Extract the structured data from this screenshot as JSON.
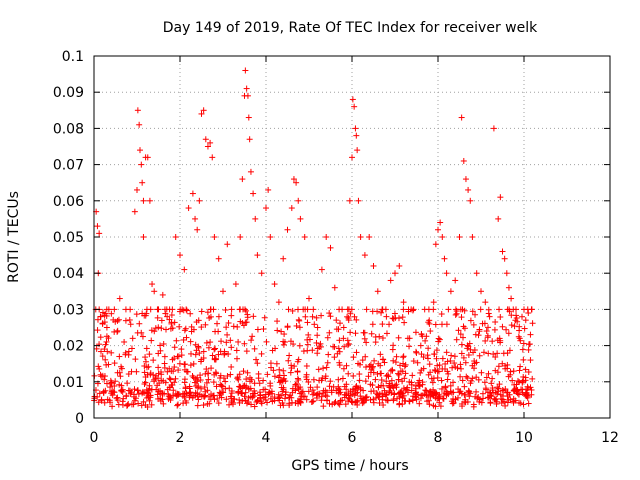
{
  "chart_data": {
    "type": "scatter",
    "title": "Day 149 of 2019, Rate Of TEC Index for receiver welk",
    "xlabel": "GPS time / hours",
    "ylabel": "ROTI / TECUs",
    "xlim": [
      0,
      12
    ],
    "ylim": [
      0,
      0.1
    ],
    "xticks": [
      0,
      2,
      4,
      6,
      8,
      10,
      12
    ],
    "xtick_labels": [
      "0",
      "2",
      "4",
      "6",
      "8",
      "10",
      "12"
    ],
    "yticks": [
      0,
      0.01,
      0.02,
      0.03,
      0.04,
      0.05,
      0.06,
      0.07,
      0.08,
      0.09,
      0.1
    ],
    "ytick_labels": [
      "0",
      "0.01",
      "0.02",
      "0.03",
      "0.04",
      "0.05",
      "0.06",
      "0.07",
      "0.08",
      "0.09",
      "0.1"
    ],
    "grid": true,
    "marker": "+",
    "marker_color": "#ff0000",
    "x_data_range": [
      0,
      10.2
    ],
    "series": [
      {
        "name": "ROTI",
        "color": "#ff0000",
        "points": [
          [
            0.05,
            0.057
          ],
          [
            0.08,
            0.053
          ],
          [
            0.12,
            0.051
          ],
          [
            0.1,
            0.04
          ],
          [
            0.15,
            0.028
          ],
          [
            0.2,
            0.026
          ],
          [
            0.3,
            0.025
          ],
          [
            0.4,
            0.018
          ],
          [
            0.6,
            0.033
          ],
          [
            0.7,
            0.021
          ],
          [
            0.9,
            0.022
          ],
          [
            0.95,
            0.057
          ],
          [
            1.0,
            0.063
          ],
          [
            1.02,
            0.085
          ],
          [
            1.05,
            0.081
          ],
          [
            1.07,
            0.074
          ],
          [
            1.1,
            0.07
          ],
          [
            1.12,
            0.065
          ],
          [
            1.15,
            0.06
          ],
          [
            1.2,
            0.072
          ],
          [
            1.25,
            0.072
          ],
          [
            1.3,
            0.06
          ],
          [
            1.15,
            0.05
          ],
          [
            1.35,
            0.037
          ],
          [
            1.4,
            0.035
          ],
          [
            1.5,
            0.03
          ],
          [
            1.6,
            0.034
          ],
          [
            1.7,
            0.028
          ],
          [
            1.8,
            0.026
          ],
          [
            1.9,
            0.05
          ],
          [
            2.0,
            0.045
          ],
          [
            2.1,
            0.041
          ],
          [
            2.2,
            0.058
          ],
          [
            2.3,
            0.062
          ],
          [
            2.35,
            0.055
          ],
          [
            2.4,
            0.052
          ],
          [
            2.45,
            0.06
          ],
          [
            2.5,
            0.084
          ],
          [
            2.55,
            0.085
          ],
          [
            2.6,
            0.077
          ],
          [
            2.65,
            0.075
          ],
          [
            2.7,
            0.076
          ],
          [
            2.75,
            0.072
          ],
          [
            2.8,
            0.05
          ],
          [
            2.9,
            0.044
          ],
          [
            3.0,
            0.035
          ],
          [
            3.1,
            0.048
          ],
          [
            3.2,
            0.03
          ],
          [
            3.3,
            0.037
          ],
          [
            3.4,
            0.05
          ],
          [
            3.45,
            0.066
          ],
          [
            3.5,
            0.089
          ],
          [
            3.52,
            0.096
          ],
          [
            3.55,
            0.091
          ],
          [
            3.58,
            0.089
          ],
          [
            3.6,
            0.083
          ],
          [
            3.62,
            0.077
          ],
          [
            3.65,
            0.068
          ],
          [
            3.7,
            0.062
          ],
          [
            3.75,
            0.055
          ],
          [
            3.8,
            0.045
          ],
          [
            3.9,
            0.04
          ],
          [
            4.0,
            0.058
          ],
          [
            4.05,
            0.063
          ],
          [
            4.1,
            0.05
          ],
          [
            4.2,
            0.037
          ],
          [
            4.3,
            0.032
          ],
          [
            4.4,
            0.044
          ],
          [
            4.5,
            0.052
          ],
          [
            4.6,
            0.058
          ],
          [
            4.65,
            0.066
          ],
          [
            4.7,
            0.065
          ],
          [
            4.75,
            0.06
          ],
          [
            4.8,
            0.055
          ],
          [
            4.9,
            0.05
          ],
          [
            5.0,
            0.033
          ],
          [
            5.1,
            0.03
          ],
          [
            5.2,
            0.025
          ],
          [
            5.3,
            0.041
          ],
          [
            5.4,
            0.05
          ],
          [
            5.5,
            0.047
          ],
          [
            5.6,
            0.036
          ],
          [
            5.7,
            0.03
          ],
          [
            5.8,
            0.022
          ],
          [
            5.9,
            0.03
          ],
          [
            5.95,
            0.06
          ],
          [
            6.0,
            0.072
          ],
          [
            6.02,
            0.088
          ],
          [
            6.05,
            0.086
          ],
          [
            6.08,
            0.08
          ],
          [
            6.1,
            0.078
          ],
          [
            6.12,
            0.074
          ],
          [
            6.15,
            0.06
          ],
          [
            6.2,
            0.05
          ],
          [
            6.3,
            0.045
          ],
          [
            6.4,
            0.05
          ],
          [
            6.5,
            0.042
          ],
          [
            6.6,
            0.035
          ],
          [
            6.7,
            0.03
          ],
          [
            6.8,
            0.028
          ],
          [
            6.9,
            0.038
          ],
          [
            7.0,
            0.04
          ],
          [
            7.1,
            0.042
          ],
          [
            7.2,
            0.032
          ],
          [
            7.3,
            0.022
          ],
          [
            7.5,
            0.018
          ],
          [
            7.6,
            0.02
          ],
          [
            7.8,
            0.026
          ],
          [
            7.9,
            0.032
          ],
          [
            7.95,
            0.048
          ],
          [
            8.0,
            0.052
          ],
          [
            8.05,
            0.054
          ],
          [
            8.1,
            0.05
          ],
          [
            8.15,
            0.044
          ],
          [
            8.2,
            0.04
          ],
          [
            8.3,
            0.035
          ],
          [
            8.4,
            0.038
          ],
          [
            8.5,
            0.05
          ],
          [
            8.55,
            0.083
          ],
          [
            8.6,
            0.071
          ],
          [
            8.65,
            0.066
          ],
          [
            8.7,
            0.063
          ],
          [
            8.75,
            0.06
          ],
          [
            8.8,
            0.05
          ],
          [
            8.9,
            0.04
          ],
          [
            9.0,
            0.035
          ],
          [
            9.1,
            0.032
          ],
          [
            9.2,
            0.028
          ],
          [
            9.3,
            0.08
          ],
          [
            9.4,
            0.055
          ],
          [
            9.45,
            0.061
          ],
          [
            9.5,
            0.046
          ],
          [
            9.55,
            0.044
          ],
          [
            9.6,
            0.04
          ],
          [
            9.65,
            0.036
          ],
          [
            9.7,
            0.033
          ],
          [
            9.8,
            0.027
          ],
          [
            9.9,
            0.022
          ],
          [
            10.0,
            0.03
          ],
          [
            10.1,
            0.029
          ],
          [
            10.15,
            0.016
          ]
        ],
        "band": {
          "description": "dense baseline of points",
          "y_range": [
            0.003,
            0.03
          ],
          "x_range": [
            0,
            10.2
          ]
        }
      }
    ]
  }
}
